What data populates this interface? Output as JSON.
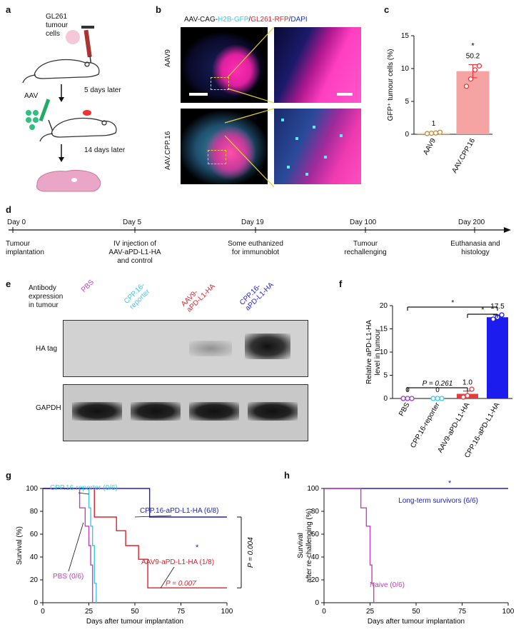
{
  "panels": {
    "a": {
      "label": "a",
      "cells_label": "GL261\ntumour\ncells",
      "aav_label": "AAV",
      "step1": "5 days later",
      "step2": "14 days later"
    },
    "b": {
      "label": "b",
      "title_parts": [
        {
          "text": "AAV-CAG-",
          "color": "#111111"
        },
        {
          "text": "H2B-GFP",
          "color": "#3ec7e6"
        },
        {
          "text": "/",
          "color": "#111111"
        },
        {
          "text": "GL261-RFP",
          "color": "#e0202a"
        },
        {
          "text": "/",
          "color": "#111111"
        },
        {
          "text": "DAPI",
          "color": "#2030d0"
        }
      ],
      "row1_label": "AAV9",
      "row2_label": "AAV.CPP.16"
    },
    "c": {
      "label": "c"
    },
    "d": {
      "label": "d",
      "milestones": [
        {
          "day": "Day 0",
          "desc": "Tumour\nimplantation"
        },
        {
          "day": "Day 5",
          "desc": "IV injection of\nAAV-aPD-L1-HA\nand control"
        },
        {
          "day": "Day 19",
          "desc": "Some euthanized\nfor immunoblot"
        },
        {
          "day": "Day 100",
          "desc": "Tumour\nrechallenging"
        },
        {
          "day": "Day 200",
          "desc": "Euthanasia and\nhistology"
        }
      ]
    },
    "e": {
      "label": "e",
      "header_label": "Antibody\nexpression\nin tumour",
      "lanes": [
        {
          "text": "PBS",
          "color": "#c040c0"
        },
        {
          "text": "CPP.16-\nreporter",
          "color": "#38c8ee"
        },
        {
          "text": "AAV9-\naPD-L1-HA",
          "color": "#e0202a"
        },
        {
          "text": "CPP.16-\naPD-L1-HA",
          "color": "#2020d0"
        }
      ],
      "blot1_label": "HA tag",
      "blot2_label": "GAPDH"
    },
    "f": {
      "label": "f"
    },
    "g": {
      "label": "g"
    },
    "h": {
      "label": "h"
    }
  },
  "chart_data": [
    {
      "id": "c",
      "type": "bar",
      "categories": [
        "AAV9",
        "AAV.CPP.16"
      ],
      "values": [
        0.2,
        9.6
      ],
      "errors": [
        0.1,
        1.0
      ],
      "points": [
        [
          0.1,
          0.15,
          0.2,
          0.3
        ],
        [
          7.3,
          8.4,
          9.8,
          10.4
        ]
      ],
      "bar_colors": [
        "#f3d3a6",
        "#f6a3a3"
      ],
      "point_colors": [
        "#c08a3a",
        "#e83a3a"
      ],
      "annotations": [
        "1",
        "50.2"
      ],
      "significance": [
        "",
        "*"
      ],
      "xlabel": "",
      "ylabel": "GFP⁺ tumour cells (%)",
      "ylim": [
        0,
        15
      ],
      "yticks": [
        "0",
        "5",
        "10",
        "15"
      ]
    },
    {
      "id": "f",
      "type": "bar",
      "categories": [
        "PBS",
        "CPP.16-reporter",
        "AAV9-aPD-L1-HA",
        "CPP.16-aPD-L1-HA"
      ],
      "values": [
        0,
        0,
        1.0,
        17.5
      ],
      "errors": [
        0,
        0,
        0.6,
        0.5
      ],
      "points": [
        [
          0,
          0,
          0
        ],
        [
          0,
          0,
          0
        ],
        [
          0.3,
          0.6,
          2.0
        ],
        [
          17.1,
          17.5,
          18.0
        ]
      ],
      "bar_colors": [
        "#9b3bc6",
        "#38c8ee",
        "#e83a3a",
        "#1c1cee"
      ],
      "point_colors": [
        "#9b3bc6",
        "#38c8ee",
        "#e83a3a",
        "#1c1cee"
      ],
      "annotations": [
        "0",
        "0",
        "1.0",
        "17.5"
      ],
      "brackets": [
        {
          "from": 0,
          "to": 2,
          "text": "P = 0.261"
        },
        {
          "from": 0,
          "to": 3,
          "text": "*"
        },
        {
          "from": 2,
          "to": 3,
          "text": "*"
        }
      ],
      "ylabel": "Relative aPD-L1-HA\nlevel in tumour",
      "ylim": [
        0,
        20
      ],
      "yticks": [
        "0",
        "5",
        "10",
        "15",
        "20"
      ]
    },
    {
      "id": "g",
      "type": "line",
      "series": [
        {
          "name": "CPP.16-reporter (0/6)",
          "color": "#38c8ee",
          "x": [
            0,
            24,
            25,
            26,
            27,
            28,
            29
          ],
          "y": [
            100,
            100,
            83,
            67,
            50,
            17,
            0
          ]
        },
        {
          "name": "PBS (0/6)",
          "color": "#c040c0",
          "x": [
            0,
            19,
            20,
            23,
            25,
            26,
            27
          ],
          "y": [
            100,
            100,
            83,
            67,
            50,
            33,
            0
          ]
        },
        {
          "name": "AAV9-aPD-L1-HA (1/8)",
          "color": "#e0202a",
          "x": [
            0,
            24,
            28,
            40,
            45,
            52,
            57,
            100
          ],
          "y": [
            100,
            100,
            75,
            63,
            50,
            38,
            13,
            13
          ]
        },
        {
          "name": "CPP.16-aPD-L1-HA (6/8)",
          "color": "#2020c0",
          "x": [
            0,
            46,
            58,
            100
          ],
          "y": [
            100,
            100,
            75,
            75
          ]
        }
      ],
      "annotations": [
        "*",
        "P = 0.007",
        "P = 0.004"
      ],
      "xlabel": "Days after tumour implantation",
      "ylabel": "Survival (%)",
      "xlim": [
        0,
        100
      ],
      "ylim": [
        0,
        100
      ],
      "xticks": [
        "0",
        "25",
        "50",
        "75",
        "100"
      ],
      "yticks": [
        "0",
        "20",
        "40",
        "60",
        "80",
        "100"
      ]
    },
    {
      "id": "h",
      "type": "line",
      "series": [
        {
          "name": "Long-term survivors (6/6)",
          "color": "#2020c0",
          "x": [
            0,
            100
          ],
          "y": [
            100,
            100
          ]
        },
        {
          "name": "Naive (0/6)",
          "color": "#c040c0",
          "x": [
            0,
            19,
            20,
            23,
            25,
            26,
            27
          ],
          "y": [
            100,
            100,
            83,
            67,
            33,
            17,
            0
          ]
        }
      ],
      "annotations": [
        "*"
      ],
      "xlabel": "Days after tumour implantation",
      "ylabel": "Survival\nafter re-challenging (%)",
      "xlim": [
        0,
        100
      ],
      "ylim": [
        0,
        100
      ],
      "xticks": [
        "0",
        "25",
        "50",
        "75",
        "100"
      ],
      "yticks": [
        "0",
        "20",
        "40",
        "60",
        "80",
        "100"
      ]
    }
  ]
}
